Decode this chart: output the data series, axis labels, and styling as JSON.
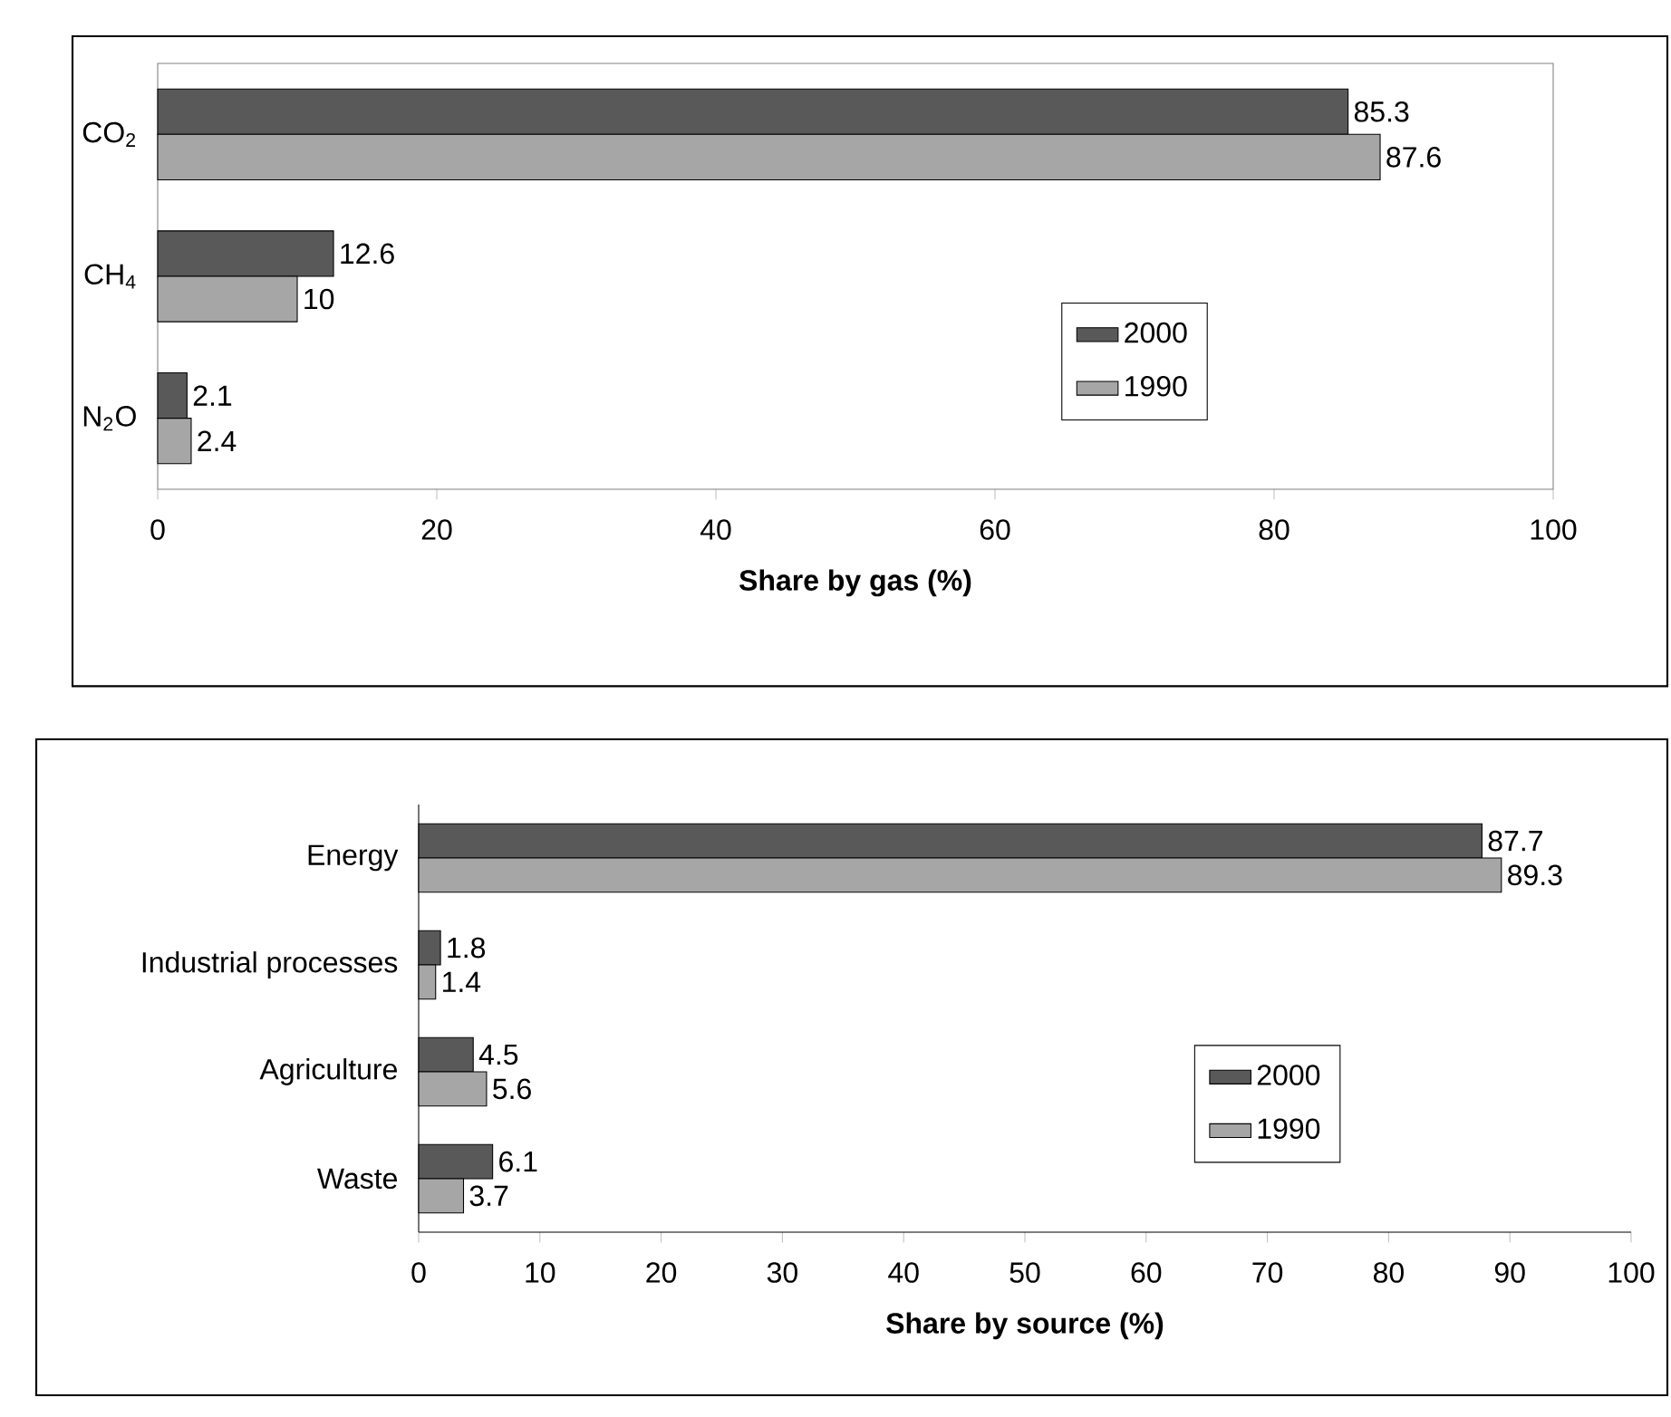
{
  "chart_data": [
    {
      "type": "bar",
      "orientation": "horizontal",
      "xlabel": "Share by gas (%)",
      "categories": [
        "CO$_{2}$",
        "CH$_{4}$",
        "N$_{2}$O"
      ],
      "series": [
        {
          "name": "2000",
          "color": "#595959",
          "values": [
            85.3,
            12.6,
            2.1
          ]
        },
        {
          "name": "1990",
          "color": "#a6a6a6",
          "values": [
            87.6,
            10,
            2.4
          ]
        }
      ],
      "xlim": [
        0,
        100
      ],
      "xticks": [
        0,
        20,
        40,
        60,
        80,
        100
      ],
      "data_labels": true,
      "legend": "bottom right"
    },
    {
      "type": "bar",
      "orientation": "horizontal",
      "xlabel": "Share by source (%)",
      "categories": [
        "Energy",
        "Industrial processes",
        "Agriculture",
        "Waste"
      ],
      "series": [
        {
          "name": "2000",
          "color": "#595959",
          "values": [
            87.7,
            1.8,
            4.5,
            6.1
          ]
        },
        {
          "name": "1990",
          "color": "#a6a6a6",
          "values": [
            89.3,
            1.4,
            5.6,
            3.7
          ]
        }
      ],
      "xlim": [
        0,
        100
      ],
      "xticks": [
        0,
        10,
        20,
        30,
        40,
        50,
        60,
        70,
        80,
        90,
        100
      ],
      "data_labels": true,
      "legend": "bottom right"
    }
  ]
}
